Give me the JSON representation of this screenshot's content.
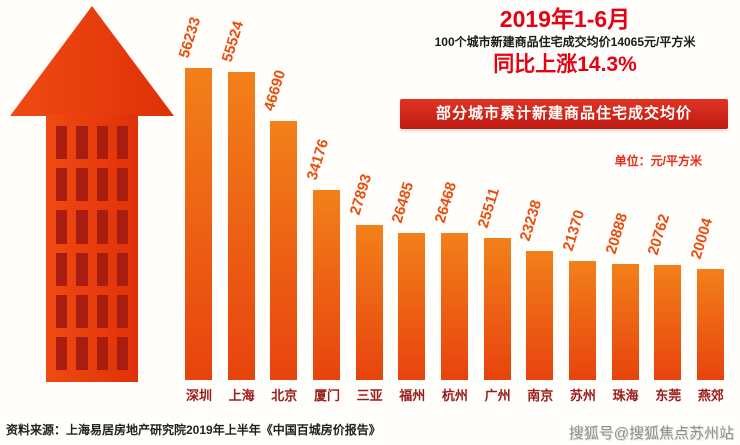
{
  "header": {
    "period": "2019年1-6月",
    "subtitle": "100个城市新建商品住宅成交均价14065元/平方米",
    "yoy": "同比上涨14.3%"
  },
  "banner": {
    "text": "部分城市累计新建商品住宅成交均价"
  },
  "unit_label": "单位：元/平方米",
  "source": "资料来源：上海易居房地产研究院2019年上半年《中国百城房价报告》",
  "watermark": "搜狐号@搜狐焦点苏州站",
  "colors": {
    "accent_red": "#e60012",
    "bar_orange": "#e8430e",
    "banner_red": "#d7231a",
    "city_label": "#9b1b1b",
    "value_label": "#e94e0f",
    "arrow_window": "#a81d10"
  },
  "chart_data": {
    "type": "bar",
    "title": "部分城市累计新建商品住宅成交均价",
    "unit": "元/平方米",
    "categories": [
      "深圳",
      "上海",
      "北京",
      "厦门",
      "三亚",
      "福州",
      "杭州",
      "广州",
      "南京",
      "苏州",
      "珠海",
      "东莞",
      "燕郊"
    ],
    "values": [
      56233,
      55524,
      46690,
      34176,
      27893,
      26485,
      26468,
      25511,
      23238,
      21370,
      20888,
      20762,
      20004
    ],
    "ylim": [
      0,
      60000
    ],
    "grid": false,
    "legend": "none",
    "value_labels_rotated": true
  }
}
